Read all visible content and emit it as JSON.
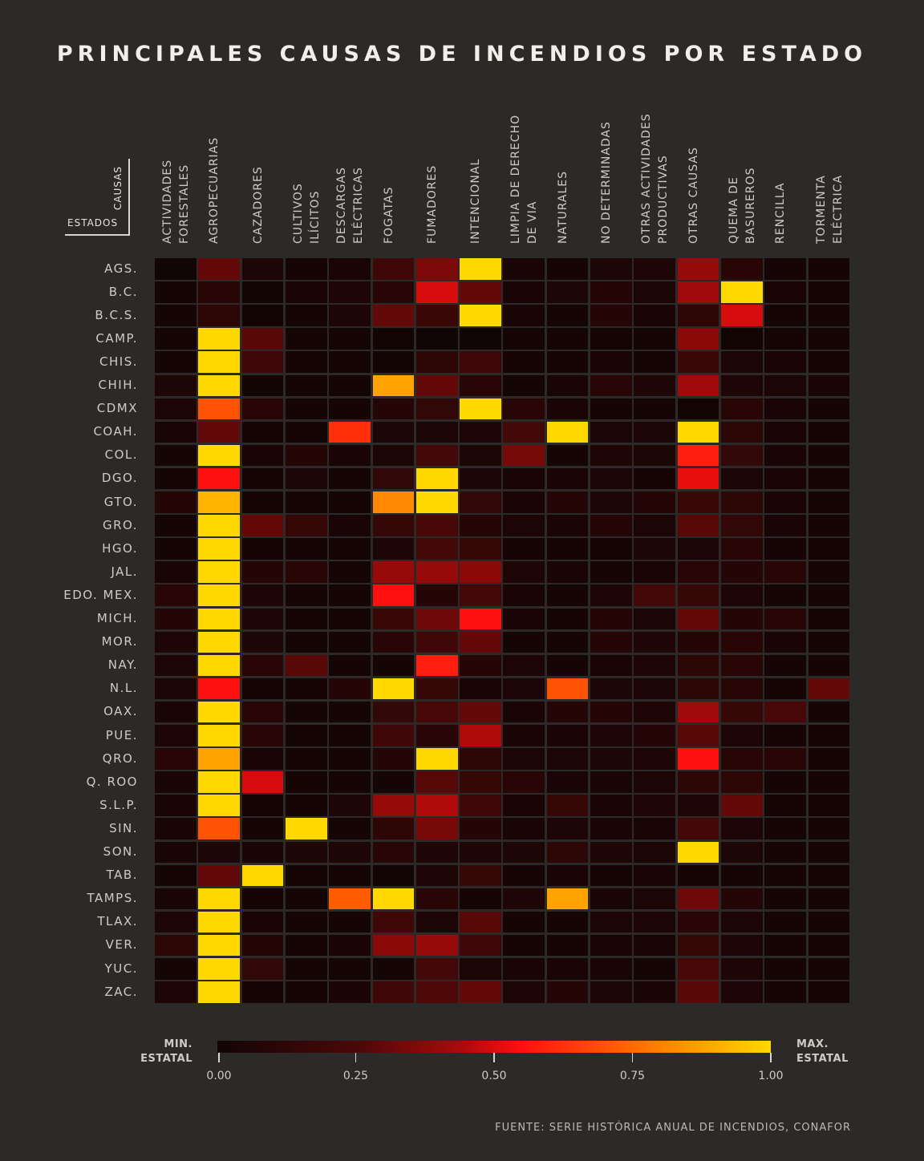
{
  "title": "PRINCIPALES CAUSAS DE INCENDIOS POR ESTADO",
  "corner": {
    "columns_label": "CAUSAS",
    "rows_label": "ESTADOS"
  },
  "legend": {
    "min_label": "MIN.\nESTATAL",
    "max_label": "MAX.\nESTATAL",
    "ticks": [
      "0.00",
      "0.25",
      "0.50",
      "0.75",
      "1.00"
    ],
    "colors": [
      "#120505",
      "#4a0808",
      "#b00a0a",
      "#ff1010",
      "#ff6a00",
      "#ffd800"
    ]
  },
  "source": "FUENTE: SERIE HISTÓRICA ANUAL DE INCENDIOS, CONAFOR",
  "chart_data": {
    "type": "heatmap",
    "title": "PRINCIPALES CAUSAS DE INCENDIOS POR ESTADO",
    "xlabel": "CAUSAS",
    "ylabel": "ESTADOS",
    "value_range": [
      0,
      1
    ],
    "columns": [
      "ACTIVIDADES\nFORESTALES",
      "AGROPECUARIAS",
      "CAZADORES",
      "CULTIVOS\nILÍCITOS",
      "DESCARGAS\nELÉCTRICAS",
      "FOGATAS",
      "FUMADORES",
      "INTENCIONAL",
      "LIMPIA DE DERECHO\nDE VIA",
      "NATURALES",
      "NO DETERMINADAS",
      "OTRAS ACTIVIDADES\nPRODUCTIVAS",
      "OTRAS CAUSAS",
      "QUEMA DE\nBASUREROS",
      "RENCILLA",
      "TORMENTA\nELÉCTRICA"
    ],
    "rows": [
      "AGS.",
      "B.C.",
      "B.C.S.",
      "CAMP.",
      "CHIS.",
      "CHIH.",
      "CDMX",
      "COAH.",
      "COL.",
      "DGO.",
      "GTO.",
      "GRO.",
      "HGO.",
      "JAL.",
      "EDO. MEX.",
      "MICH.",
      "MOR.",
      "NAY.",
      "N.L.",
      "OAX.",
      "PUE.",
      "QRO.",
      "Q. ROO",
      "S.L.P.",
      "SIN.",
      "SON.",
      "TAB.",
      "TAMPS.",
      "TLAX.",
      "VER.",
      "YUC.",
      "ZAC."
    ],
    "values": [
      [
        0.0,
        0.3,
        0.05,
        0.02,
        0.03,
        0.2,
        0.35,
        1.0,
        0.03,
        0.02,
        0.05,
        0.06,
        0.4,
        0.1,
        0.02,
        0.02
      ],
      [
        0.02,
        0.1,
        0.01,
        0.03,
        0.06,
        0.1,
        0.5,
        0.3,
        0.03,
        0.05,
        0.08,
        0.04,
        0.42,
        1.0,
        0.03,
        0.02
      ],
      [
        0.02,
        0.12,
        0.01,
        0.02,
        0.05,
        0.3,
        0.18,
        1.0,
        0.03,
        0.02,
        0.08,
        0.03,
        0.12,
        0.5,
        0.02,
        0.02
      ],
      [
        0.02,
        1.0,
        0.28,
        0.02,
        0.02,
        0.01,
        0.0,
        0.0,
        0.02,
        0.02,
        0.02,
        0.02,
        0.38,
        0.01,
        0.02,
        0.02
      ],
      [
        0.02,
        1.0,
        0.2,
        0.02,
        0.02,
        0.01,
        0.12,
        0.2,
        0.02,
        0.02,
        0.03,
        0.02,
        0.18,
        0.04,
        0.03,
        0.02
      ],
      [
        0.05,
        1.0,
        0.01,
        0.02,
        0.02,
        0.88,
        0.3,
        0.1,
        0.02,
        0.03,
        0.1,
        0.06,
        0.42,
        0.06,
        0.04,
        0.03
      ],
      [
        0.04,
        0.7,
        0.1,
        0.02,
        0.02,
        0.08,
        0.14,
        1.0,
        0.1,
        0.03,
        0.02,
        0.02,
        0.01,
        0.1,
        0.03,
        0.02
      ],
      [
        0.03,
        0.3,
        0.02,
        0.02,
        0.62,
        0.05,
        0.04,
        0.06,
        0.22,
        1.0,
        0.04,
        0.05,
        1.0,
        0.12,
        0.03,
        0.02
      ],
      [
        0.02,
        1.0,
        0.03,
        0.08,
        0.03,
        0.04,
        0.22,
        0.05,
        0.34,
        0.02,
        0.06,
        0.04,
        0.58,
        0.14,
        0.03,
        0.02
      ],
      [
        0.02,
        0.55,
        0.02,
        0.05,
        0.02,
        0.14,
        1.0,
        0.05,
        0.03,
        0.03,
        0.04,
        0.02,
        0.52,
        0.04,
        0.03,
        0.02
      ],
      [
        0.08,
        0.92,
        0.02,
        0.02,
        0.02,
        0.82,
        1.0,
        0.14,
        0.03,
        0.08,
        0.04,
        0.08,
        0.18,
        0.12,
        0.03,
        0.02
      ],
      [
        0.02,
        1.0,
        0.3,
        0.16,
        0.03,
        0.16,
        0.24,
        0.08,
        0.04,
        0.03,
        0.08,
        0.04,
        0.28,
        0.14,
        0.03,
        0.02
      ],
      [
        0.02,
        1.0,
        0.02,
        0.02,
        0.02,
        0.06,
        0.22,
        0.16,
        0.02,
        0.02,
        0.02,
        0.05,
        0.04,
        0.1,
        0.02,
        0.02
      ],
      [
        0.03,
        1.0,
        0.08,
        0.1,
        0.02,
        0.4,
        0.4,
        0.38,
        0.06,
        0.03,
        0.02,
        0.03,
        0.1,
        0.08,
        0.1,
        0.02
      ],
      [
        0.1,
        1.0,
        0.06,
        0.02,
        0.02,
        0.55,
        0.08,
        0.22,
        0.03,
        0.02,
        0.06,
        0.22,
        0.16,
        0.06,
        0.02,
        0.02
      ],
      [
        0.08,
        1.0,
        0.06,
        0.02,
        0.02,
        0.18,
        0.32,
        0.55,
        0.03,
        0.02,
        0.08,
        0.04,
        0.3,
        0.08,
        0.1,
        0.02
      ],
      [
        0.06,
        1.0,
        0.05,
        0.02,
        0.02,
        0.1,
        0.2,
        0.3,
        0.02,
        0.02,
        0.08,
        0.06,
        0.08,
        0.1,
        0.03,
        0.02
      ],
      [
        0.04,
        1.0,
        0.1,
        0.28,
        0.02,
        0.02,
        0.58,
        0.08,
        0.04,
        0.02,
        0.03,
        0.06,
        0.12,
        0.1,
        0.02,
        0.02
      ],
      [
        0.04,
        0.55,
        0.02,
        0.02,
        0.08,
        1.0,
        0.16,
        0.03,
        0.04,
        0.7,
        0.05,
        0.04,
        0.12,
        0.1,
        0.02,
        0.3
      ],
      [
        0.03,
        1.0,
        0.1,
        0.02,
        0.02,
        0.14,
        0.24,
        0.3,
        0.03,
        0.08,
        0.08,
        0.06,
        0.42,
        0.16,
        0.24,
        0.02
      ],
      [
        0.06,
        1.0,
        0.1,
        0.02,
        0.02,
        0.2,
        0.1,
        0.45,
        0.03,
        0.03,
        0.06,
        0.08,
        0.28,
        0.06,
        0.02,
        0.02
      ],
      [
        0.1,
        0.88,
        0.03,
        0.02,
        0.02,
        0.08,
        1.0,
        0.12,
        0.04,
        0.04,
        0.05,
        0.06,
        0.55,
        0.1,
        0.1,
        0.02
      ],
      [
        0.03,
        1.0,
        0.5,
        0.02,
        0.02,
        0.02,
        0.28,
        0.16,
        0.1,
        0.03,
        0.03,
        0.04,
        0.12,
        0.12,
        0.02,
        0.02
      ],
      [
        0.03,
        1.0,
        0.02,
        0.02,
        0.05,
        0.4,
        0.45,
        0.2,
        0.03,
        0.16,
        0.03,
        0.06,
        0.06,
        0.3,
        0.02,
        0.02
      ],
      [
        0.03,
        0.7,
        0.02,
        1.0,
        0.02,
        0.12,
        0.34,
        0.08,
        0.03,
        0.05,
        0.03,
        0.03,
        0.22,
        0.06,
        0.02,
        0.02
      ],
      [
        0.03,
        0.05,
        0.03,
        0.05,
        0.05,
        0.1,
        0.06,
        0.06,
        0.05,
        0.12,
        0.06,
        0.04,
        1.0,
        0.05,
        0.02,
        0.02
      ],
      [
        0.02,
        0.3,
        1.0,
        0.02,
        0.02,
        0.01,
        0.06,
        0.16,
        0.02,
        0.03,
        0.02,
        0.03,
        0.02,
        0.02,
        0.02,
        0.02
      ],
      [
        0.03,
        1.0,
        0.02,
        0.02,
        0.72,
        1.0,
        0.1,
        0.02,
        0.06,
        0.88,
        0.03,
        0.04,
        0.32,
        0.08,
        0.02,
        0.02
      ],
      [
        0.06,
        1.0,
        0.03,
        0.02,
        0.02,
        0.2,
        0.04,
        0.28,
        0.02,
        0.02,
        0.04,
        0.04,
        0.1,
        0.04,
        0.02,
        0.02
      ],
      [
        0.12,
        1.0,
        0.08,
        0.02,
        0.03,
        0.38,
        0.4,
        0.2,
        0.02,
        0.02,
        0.03,
        0.03,
        0.16,
        0.06,
        0.02,
        0.02
      ],
      [
        0.02,
        1.0,
        0.14,
        0.02,
        0.02,
        0.02,
        0.22,
        0.04,
        0.03,
        0.03,
        0.03,
        0.02,
        0.24,
        0.06,
        0.02,
        0.02
      ],
      [
        0.06,
        1.0,
        0.02,
        0.02,
        0.03,
        0.2,
        0.26,
        0.3,
        0.06,
        0.08,
        0.04,
        0.03,
        0.28,
        0.06,
        0.02,
        0.02
      ]
    ]
  }
}
